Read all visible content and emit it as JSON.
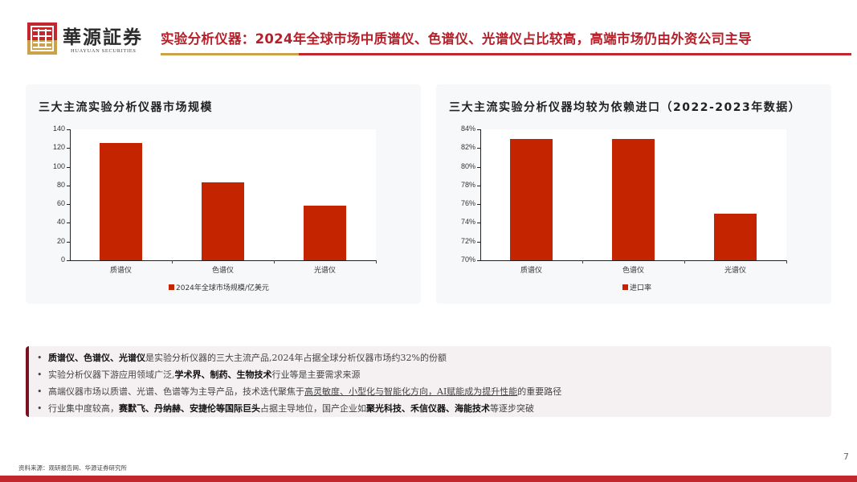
{
  "header": {
    "brand_cn": "華源証券",
    "brand_en": "HUAYUAN SECURITIES",
    "title": "实验分析仪器：2024年全球市场中质谱仪、色谱仪、光谱仪占比较高，高端市场仍由外资公司主导",
    "colors": {
      "red": "#c1272d",
      "gold": "#c9a24a"
    }
  },
  "charts": {
    "left": {
      "title": "三大主流实验分析仪器市场规模",
      "yticks": [
        "140",
        "120",
        "100",
        "80",
        "60",
        "40",
        "20",
        "0"
      ],
      "categories": [
        "质谱仪",
        "色谱仪",
        "光谱仪"
      ],
      "legend": "2024年全球市场规模/亿美元"
    },
    "right": {
      "title": "三大主流实验分析仪器均较为依赖进口（2022-2023年数据）",
      "yticks": [
        "84%",
        "82%",
        "80%",
        "78%",
        "76%",
        "74%",
        "72%",
        "70%"
      ],
      "categories": [
        "质谱仪",
        "色谱仪",
        "光谱仪"
      ],
      "legend": "进口率"
    }
  },
  "chart_data": [
    {
      "type": "bar",
      "title": "三大主流实验分析仪器市场规模",
      "categories": [
        "质谱仪",
        "色谱仪",
        "光谱仪"
      ],
      "series": [
        {
          "name": "2024年全球市场规模/亿美元",
          "values": [
            125,
            83,
            58
          ],
          "color": "#c42400"
        }
      ],
      "xlabel": "",
      "ylabel": "",
      "ylim": [
        0,
        140
      ],
      "yticks": [
        0,
        20,
        40,
        60,
        80,
        100,
        120,
        140
      ],
      "grid": false,
      "legend_position": "bottom"
    },
    {
      "type": "bar",
      "title": "三大主流实验分析仪器均较为依赖进口（2022-2023年数据）",
      "categories": [
        "质谱仪",
        "色谱仪",
        "光谱仪"
      ],
      "series": [
        {
          "name": "进口率",
          "values": [
            83,
            83,
            75
          ],
          "unit": "%",
          "color": "#c42400"
        }
      ],
      "xlabel": "",
      "ylabel": "",
      "ylim": [
        70,
        84
      ],
      "yticks": [
        70,
        72,
        74,
        76,
        78,
        80,
        82,
        84
      ],
      "grid": false,
      "legend_position": "bottom"
    }
  ],
  "bullets": [
    {
      "parts": [
        {
          "t": "质谱仪、色谱仪、光谱仪",
          "b": true
        },
        {
          "t": "是实验分析仪器的三大主流产品,2024年占据全球分析仪器市场约32%的份额"
        }
      ]
    },
    {
      "parts": [
        {
          "t": "实验分析仪器下游应用领域广泛,"
        },
        {
          "t": "学术界、制药、生物技术",
          "b": true
        },
        {
          "t": "行业等是主要需求来源"
        }
      ]
    },
    {
      "parts": [
        {
          "t": "高端仪器市场以质谱、光谱、色谱等为主导产品，技术迭代聚焦于"
        },
        {
          "t": "高灵敏度、小型化与智能化方向，AI赋能成为提升性能",
          "u": true
        },
        {
          "t": "的重要路径"
        }
      ]
    },
    {
      "parts": [
        {
          "t": "行业集中度较高，"
        },
        {
          "t": "赛默飞、丹纳赫、安捷伦等国际巨头",
          "b": true
        },
        {
          "t": "占据主导地位，国产企业如"
        },
        {
          "t": "聚光科技、禾信仪器、海能技术",
          "b": true
        },
        {
          "t": "等逐步突破"
        }
      ]
    }
  ],
  "footer": {
    "source": "资料来源：观研报告网、华源证券研究所",
    "page_number": "7"
  }
}
